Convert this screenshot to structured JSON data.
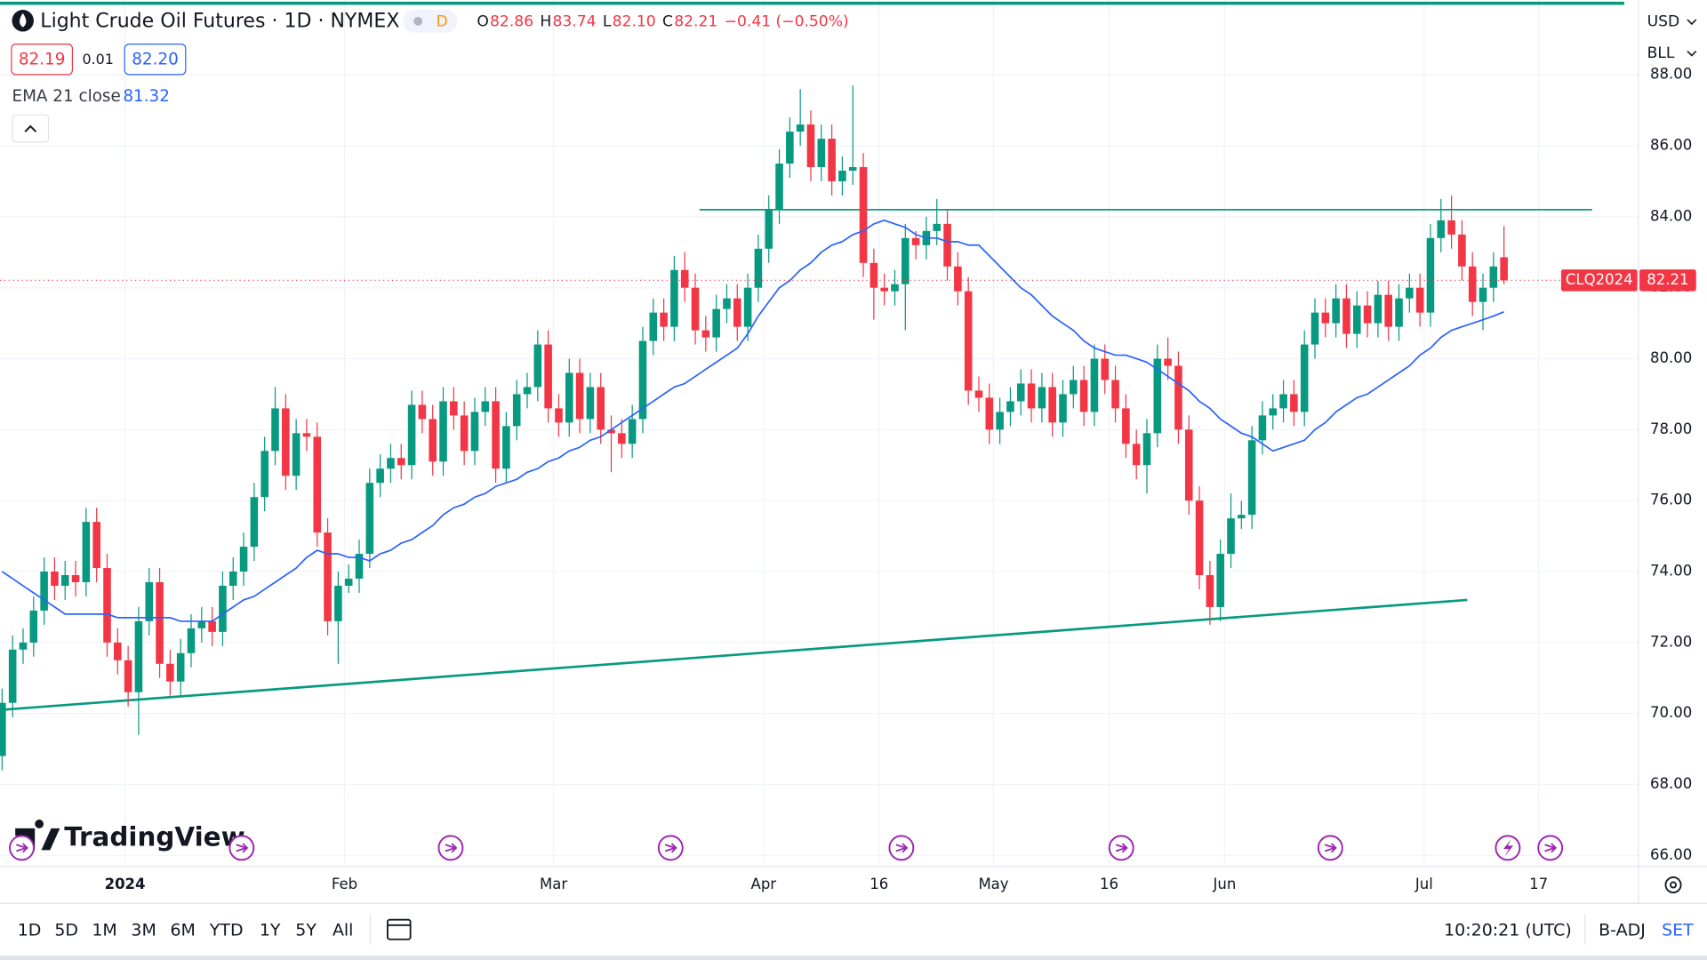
{
  "chart_data": {
    "type": "candlestick",
    "title": "Light Crude Oil Futures · 1D · NYMEX",
    "interval_badge": "D",
    "ohlc_header": [
      [
        "O",
        "82.86"
      ],
      [
        "H",
        "83.74"
      ],
      [
        "L",
        "82.10"
      ],
      [
        "C",
        "82.21"
      ]
    ],
    "change": "−0.41 (−0.50%)",
    "bid": "82.19",
    "spread": "0.01",
    "ask": "82.20",
    "indicator": "EMA 21 close",
    "symbol": "CLQ2024",
    "currency": "USD",
    "unit": "BLL",
    "logo": "TradingView",
    "up_color": "#089981",
    "down_color": "#f23645",
    "ema_color": "#2962ff",
    "grid": true,
    "xlim": [
      -0.2,
      155.8
    ],
    "xticks": [
      {
        "value": 11.7,
        "label": "2024"
      },
      {
        "value": 32.6,
        "label": "Feb"
      },
      {
        "value": 52.5,
        "label": "Mar"
      },
      {
        "value": 72.5,
        "label": "Apr"
      },
      {
        "value": 83.5,
        "label": "16"
      },
      {
        "value": 94.4,
        "label": "May"
      },
      {
        "value": 105.4,
        "label": "16"
      },
      {
        "value": 116.4,
        "label": "Jun"
      },
      {
        "value": 135.4,
        "label": "Jul"
      },
      {
        "value": 146.3,
        "label": "17"
      }
    ],
    "ylim": [
      65.69,
      90.11
    ],
    "yticks": [
      {
        "value": 66,
        "label": "66.00"
      },
      {
        "value": 68,
        "label": "68.00"
      },
      {
        "value": 70,
        "label": "70.00"
      },
      {
        "value": 72,
        "label": "72.00"
      },
      {
        "value": 74,
        "label": "74.00"
      },
      {
        "value": 76,
        "label": "76.00"
      },
      {
        "value": 78,
        "label": "78.00"
      },
      {
        "value": 80,
        "label": "80.00"
      },
      {
        "value": 82,
        "label": "82.00"
      },
      {
        "value": 84,
        "label": "84.00"
      },
      {
        "value": 86,
        "label": "86.00"
      },
      {
        "value": 88,
        "label": "88.00"
      }
    ],
    "open": [
      68.8,
      70.3,
      71.8,
      72.0,
      72.9,
      74.0,
      73.6,
      73.9,
      73.7,
      75.4,
      74.1,
      72.0,
      71.5,
      70.6,
      72.6,
      73.7,
      71.4,
      70.9,
      71.7,
      72.4,
      72.6,
      72.3,
      73.6,
      74.0,
      74.7,
      76.1,
      77.4,
      78.6,
      76.7,
      77.9,
      77.8,
      75.1,
      72.6,
      73.6,
      73.8,
      74.5,
      76.5,
      76.9,
      77.2,
      77.0,
      78.7,
      78.3,
      77.1,
      78.8,
      78.4,
      77.4,
      78.5,
      78.8,
      76.9,
      78.1,
      79.0,
      79.2,
      80.4,
      78.6,
      78.2,
      79.6,
      78.3,
      79.2,
      78.0,
      77.9,
      77.6,
      78.3,
      80.5,
      81.3,
      80.9,
      82.5,
      82.0,
      80.8,
      80.6,
      81.4,
      81.7,
      80.9,
      82.0,
      83.1,
      84.2,
      85.5,
      86.4,
      86.6,
      85.4,
      86.2,
      85.0,
      85.3,
      85.4,
      82.7,
      82.0,
      81.9,
      82.1,
      83.4,
      83.2,
      83.6,
      83.8,
      82.6,
      81.9,
      79.1,
      78.9,
      78.0,
      78.5,
      78.8,
      79.3,
      78.6,
      79.2,
      78.2,
      79.0,
      79.4,
      78.5,
      80.0,
      79.4,
      78.6,
      77.6,
      77.0,
      77.9,
      80.0,
      79.8,
      78.0,
      76.0,
      73.9,
      73.0,
      74.5,
      75.5,
      75.6,
      77.7,
      78.4,
      78.6,
      79.0,
      78.5,
      80.4,
      81.3,
      81.0,
      81.7,
      80.7,
      81.5,
      81.0,
      81.8,
      80.9,
      81.7,
      82.0,
      81.3,
      83.4,
      83.9,
      83.5,
      82.6,
      81.6,
      82.0,
      82.86
    ],
    "high": [
      70.7,
      72.2,
      72.4,
      73.3,
      74.4,
      74.4,
      74.3,
      74.3,
      75.8,
      75.8,
      74.5,
      72.4,
      71.9,
      73.0,
      74.1,
      74.1,
      71.8,
      72.1,
      72.8,
      73.0,
      73.0,
      74.0,
      74.4,
      75.1,
      76.5,
      77.8,
      79.2,
      79.0,
      78.3,
      78.3,
      78.2,
      75.5,
      74.0,
      74.2,
      74.9,
      76.9,
      77.3,
      77.6,
      77.6,
      79.1,
      79.1,
      78.7,
      79.2,
      79.2,
      78.8,
      78.9,
      79.2,
      79.2,
      78.5,
      79.4,
      79.6,
      80.8,
      80.8,
      79.0,
      80.0,
      80.0,
      79.6,
      79.6,
      78.4,
      78.3,
      78.7,
      80.9,
      81.7,
      81.7,
      82.9,
      83.0,
      82.4,
      81.2,
      81.8,
      82.1,
      82.1,
      82.4,
      83.5,
      84.6,
      85.9,
      86.8,
      87.6,
      87.0,
      86.6,
      86.6,
      85.7,
      87.7,
      85.8,
      83.1,
      82.4,
      82.5,
      83.8,
      83.6,
      84.0,
      84.5,
      84.2,
      83.0,
      82.3,
      79.5,
      79.3,
      78.9,
      79.2,
      79.7,
      79.7,
      79.6,
      79.6,
      79.4,
      79.8,
      79.8,
      80.4,
      80.4,
      79.8,
      79.0,
      78.0,
      78.3,
      80.4,
      80.6,
      80.2,
      78.4,
      76.4,
      74.3,
      74.9,
      76.2,
      76.0,
      78.1,
      78.8,
      79.0,
      79.4,
      79.4,
      80.8,
      81.7,
      81.7,
      82.1,
      82.1,
      81.9,
      81.9,
      82.2,
      82.2,
      82.1,
      82.4,
      82.4,
      83.8,
      84.5,
      84.6,
      83.9,
      83.0,
      82.4,
      83.0,
      83.74
    ],
    "low": [
      68.4,
      69.9,
      71.4,
      71.6,
      72.5,
      73.2,
      73.2,
      73.3,
      73.3,
      73.7,
      71.6,
      71.1,
      70.2,
      69.4,
      72.2,
      71.0,
      70.5,
      70.5,
      71.3,
      72.0,
      71.9,
      71.9,
      73.2,
      73.6,
      74.3,
      75.7,
      77.0,
      76.3,
      76.3,
      77.4,
      74.7,
      72.2,
      71.4,
      73.4,
      73.4,
      74.1,
      76.1,
      76.5,
      76.6,
      76.6,
      77.9,
      76.7,
      76.7,
      78.0,
      77.0,
      77.0,
      78.1,
      76.5,
      76.5,
      77.7,
      78.6,
      78.8,
      78.2,
      77.8,
      77.8,
      77.9,
      77.9,
      77.6,
      76.8,
      77.2,
      77.2,
      77.9,
      80.1,
      80.5,
      80.5,
      81.6,
      80.4,
      80.2,
      80.2,
      81.0,
      80.5,
      80.5,
      81.6,
      82.7,
      83.8,
      85.1,
      86.0,
      85.0,
      85.0,
      84.6,
      84.6,
      84.9,
      82.3,
      81.1,
      81.5,
      81.5,
      80.8,
      82.8,
      82.8,
      83.2,
      82.2,
      81.5,
      78.7,
      78.5,
      77.6,
      77.6,
      78.1,
      78.4,
      78.2,
      78.2,
      77.8,
      77.8,
      78.6,
      78.1,
      78.1,
      79.0,
      78.2,
      77.2,
      76.6,
      76.2,
      77.5,
      79.4,
      77.6,
      75.6,
      73.5,
      72.5,
      72.6,
      74.1,
      75.2,
      75.2,
      77.3,
      78.0,
      78.2,
      78.1,
      78.1,
      80.0,
      80.6,
      80.6,
      80.3,
      80.3,
      80.6,
      80.6,
      80.5,
      80.5,
      81.3,
      80.9,
      80.9,
      83.0,
      83.1,
      82.2,
      81.2,
      80.8,
      81.6,
      82.1
    ],
    "close": [
      70.3,
      71.8,
      72.0,
      72.9,
      74.0,
      73.6,
      73.9,
      73.7,
      75.4,
      74.1,
      72.0,
      71.5,
      70.6,
      72.6,
      73.7,
      71.4,
      70.9,
      71.7,
      72.4,
      72.6,
      72.3,
      73.6,
      74.0,
      74.7,
      76.1,
      77.4,
      78.6,
      76.7,
      77.9,
      77.8,
      75.1,
      72.6,
      73.6,
      73.8,
      74.5,
      76.5,
      76.9,
      77.2,
      77.0,
      78.7,
      78.3,
      77.1,
      78.8,
      78.4,
      77.4,
      78.5,
      78.8,
      76.9,
      78.1,
      79.0,
      79.2,
      80.4,
      78.6,
      78.2,
      79.6,
      78.3,
      79.2,
      78.0,
      77.9,
      77.6,
      78.3,
      80.5,
      81.3,
      80.9,
      82.5,
      82.0,
      80.8,
      80.6,
      81.4,
      81.7,
      80.9,
      82.0,
      83.1,
      84.2,
      85.5,
      86.4,
      86.6,
      85.4,
      86.2,
      85.0,
      85.3,
      85.4,
      82.7,
      82.0,
      81.9,
      82.1,
      83.4,
      83.2,
      83.6,
      83.8,
      82.6,
      81.9,
      79.1,
      78.9,
      78.0,
      78.5,
      78.8,
      79.3,
      78.6,
      79.2,
      78.2,
      79.0,
      79.4,
      78.5,
      80.0,
      79.4,
      78.6,
      77.6,
      77.0,
      77.9,
      80.0,
      79.8,
      78.0,
      76.0,
      73.9,
      73.0,
      74.5,
      75.5,
      75.6,
      77.7,
      78.4,
      78.6,
      79.0,
      78.5,
      80.4,
      81.3,
      81.0,
      81.7,
      80.7,
      81.5,
      81.0,
      81.8,
      80.9,
      81.7,
      82.0,
      81.3,
      83.4,
      83.9,
      83.5,
      82.6,
      81.6,
      82.0,
      82.6,
      82.21
    ],
    "ema": [
      74.0,
      73.8,
      73.6,
      73.4,
      73.2,
      73.0,
      72.8,
      72.8,
      72.8,
      72.8,
      72.8,
      72.7,
      72.7,
      72.7,
      72.7,
      72.7,
      72.7,
      72.6,
      72.6,
      72.6,
      72.6,
      72.8,
      73.0,
      73.2,
      73.3,
      73.5,
      73.7,
      73.9,
      74.1,
      74.4,
      74.6,
      74.5,
      74.5,
      74.4,
      74.4,
      74.3,
      74.5,
      74.6,
      74.8,
      74.9,
      75.1,
      75.3,
      75.6,
      75.8,
      75.9,
      76.1,
      76.2,
      76.4,
      76.5,
      76.6,
      76.8,
      76.9,
      77.1,
      77.2,
      77.4,
      77.5,
      77.7,
      77.8,
      78.0,
      78.2,
      78.4,
      78.6,
      78.8,
      79.0,
      79.2,
      79.3,
      79.5,
      79.7,
      79.9,
      80.1,
      80.3,
      80.7,
      81.2,
      81.6,
      82.0,
      82.2,
      82.5,
      82.7,
      83.0,
      83.2,
      83.3,
      83.5,
      83.6,
      83.8,
      83.9,
      83.8,
      83.7,
      83.5,
      83.4,
      83.4,
      83.3,
      83.3,
      83.2,
      83.2,
      82.9,
      82.6,
      82.3,
      82.0,
      81.8,
      81.5,
      81.2,
      81.0,
      80.8,
      80.5,
      80.3,
      80.2,
      80.1,
      80.1,
      80.0,
      79.9,
      79.7,
      79.5,
      79.3,
      79.1,
      78.8,
      78.6,
      78.3,
      78.1,
      77.9,
      77.8,
      77.6,
      77.4,
      77.5,
      77.6,
      77.7,
      78.0,
      78.2,
      78.5,
      78.7,
      78.9,
      79.0,
      79.2,
      79.4,
      79.6,
      79.8,
      80.1,
      80.3,
      80.6,
      80.8,
      80.9,
      81.0,
      81.1,
      81.2,
      81.32
    ],
    "lines": [
      {
        "x": [
          -0.2,
          139.5
        ],
        "y": [
          70.1,
          73.2
        ],
        "color": "#089981"
      },
      {
        "x": [
          66.4,
          151.4
        ],
        "y": [
          84.2,
          84.2
        ],
        "color": "#089981"
      }
    ],
    "ranges": [
      "1D",
      "5D",
      "1M",
      "3M",
      "6M",
      "YTD",
      "1Y",
      "5Y",
      "All"
    ],
    "clock": "10:20:21 (UTC)",
    "adjust": "B-ADJ",
    "session": "SET"
  }
}
